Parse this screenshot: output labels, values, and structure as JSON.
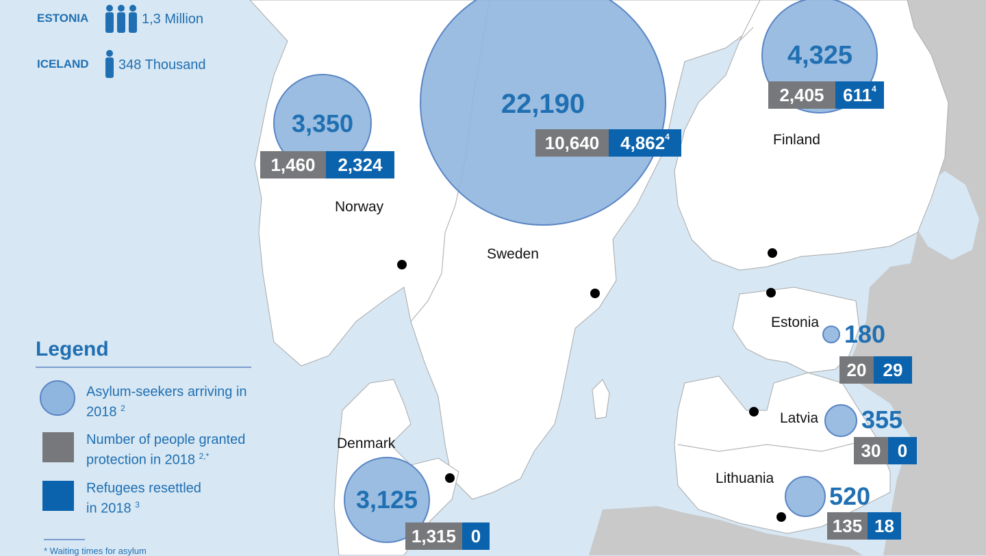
{
  "colors": {
    "sea": "#d7e7f3",
    "land": "#ffffff",
    "other_land": "#c9c9c9",
    "bubble": "#8fb6de",
    "bubble_stroke": "#5a84c4",
    "granted": "#77787b",
    "resettled": "#0b63ad",
    "text_blue": "#1f6fb2"
  },
  "population": [
    {
      "country": "ESTONIA",
      "icon": "people-group-icon",
      "value": "1,3 Million"
    },
    {
      "country": "ICELAND",
      "icon": "person-icon",
      "value": "348 Thousand"
    }
  ],
  "countries": {
    "norway": {
      "name": "Norway",
      "arrivals": "3,350",
      "granted": "1,460",
      "resettled": "2,324",
      "resettled_note": ""
    },
    "sweden": {
      "name": "Sweden",
      "arrivals": "22,190",
      "granted": "10,640",
      "resettled": "4,862",
      "resettled_note": "4"
    },
    "finland": {
      "name": "Finland",
      "arrivals": "4,325",
      "granted": "2,405",
      "resettled": "611",
      "resettled_note": "4"
    },
    "estonia": {
      "name": "Estonia",
      "arrivals": "180",
      "granted": "20",
      "resettled": "29",
      "resettled_note": ""
    },
    "latvia": {
      "name": "Latvia",
      "arrivals": "355",
      "granted": "30",
      "resettled": "0",
      "resettled_note": ""
    },
    "lithuania": {
      "name": "Lithuania",
      "arrivals": "520",
      "granted": "135",
      "resettled": "18",
      "resettled_note": ""
    },
    "denmark": {
      "name": "Denmark",
      "arrivals": "3,125",
      "granted": "1,315",
      "resettled": "0",
      "resettled_note": ""
    }
  },
  "legend": {
    "title": "Legend",
    "arrivals_line1": "Asylum-seekers arriving in",
    "arrivals_line2": "2018",
    "arrivals_sup": "2",
    "granted_line1": "Number of people granted",
    "granted_line2": "protection in 2018",
    "granted_sup": "2,*",
    "resettled_line1": "Refugees resettled",
    "resettled_line2": "in 2018",
    "resettled_sup": "3"
  },
  "footnote": "* Waiting times for asylum"
}
